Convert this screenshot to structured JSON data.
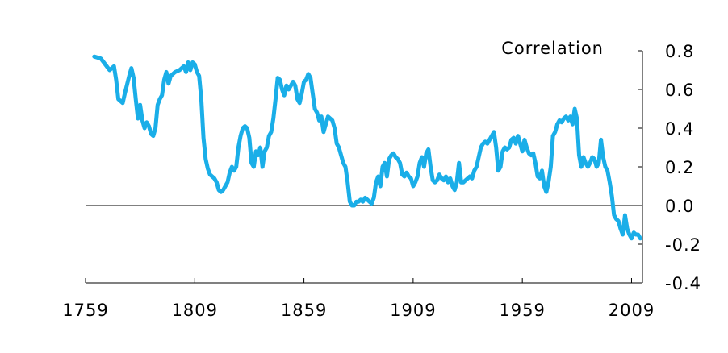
{
  "chart_data": {
    "type": "line",
    "title": "",
    "xlabel": "",
    "ylabel": "Correlation",
    "xlim": [
      1759,
      2014
    ],
    "ylim": [
      -0.4,
      0.8
    ],
    "x_ticks": [
      1759,
      1809,
      1859,
      1909,
      1959,
      2009
    ],
    "x_tick_labels": [
      "1759",
      "1809",
      "1859",
      "1909",
      "1959",
      "2009"
    ],
    "y_ticks": [
      0.8,
      0.6,
      0.4,
      0.2,
      0.0,
      -0.2,
      -0.4
    ],
    "y_tick_labels": [
      "0.8",
      "0.6",
      "0.4",
      "0.2",
      "0.0",
      "-0.2",
      "-0.4"
    ],
    "y_axis_position": "right",
    "zero_line": true,
    "grid": false,
    "legend": "none",
    "series": [
      {
        "color": "#1aaee8",
        "points": [
          [
            1763,
            0.77
          ],
          [
            1766,
            0.76
          ],
          [
            1768,
            0.73
          ],
          [
            1770,
            0.7
          ],
          [
            1772,
            0.72
          ],
          [
            1773,
            0.65
          ],
          [
            1774,
            0.55
          ],
          [
            1776,
            0.53
          ],
          [
            1777,
            0.58
          ],
          [
            1779,
            0.67
          ],
          [
            1780,
            0.71
          ],
          [
            1781,
            0.66
          ],
          [
            1782,
            0.55
          ],
          [
            1783,
            0.45
          ],
          [
            1784,
            0.52
          ],
          [
            1785,
            0.44
          ],
          [
            1786,
            0.4
          ],
          [
            1787,
            0.43
          ],
          [
            1788,
            0.41
          ],
          [
            1789,
            0.37
          ],
          [
            1790,
            0.36
          ],
          [
            1791,
            0.4
          ],
          [
            1792,
            0.52
          ],
          [
            1793,
            0.55
          ],
          [
            1794,
            0.57
          ],
          [
            1795,
            0.65
          ],
          [
            1796,
            0.69
          ],
          [
            1797,
            0.63
          ],
          [
            1798,
            0.67
          ],
          [
            1800,
            0.69
          ],
          [
            1802,
            0.7
          ],
          [
            1804,
            0.72
          ],
          [
            1805,
            0.69
          ],
          [
            1806,
            0.74
          ],
          [
            1807,
            0.7
          ],
          [
            1808,
            0.74
          ],
          [
            1809,
            0.73
          ],
          [
            1810,
            0.69
          ],
          [
            1811,
            0.67
          ],
          [
            1812,
            0.55
          ],
          [
            1813,
            0.35
          ],
          [
            1814,
            0.24
          ],
          [
            1815,
            0.19
          ],
          [
            1816,
            0.16
          ],
          [
            1817,
            0.15
          ],
          [
            1818,
            0.14
          ],
          [
            1819,
            0.12
          ],
          [
            1820,
            0.08
          ],
          [
            1821,
            0.07
          ],
          [
            1822,
            0.08
          ],
          [
            1823,
            0.1
          ],
          [
            1824,
            0.12
          ],
          [
            1825,
            0.17
          ],
          [
            1826,
            0.2
          ],
          [
            1827,
            0.18
          ],
          [
            1828,
            0.2
          ],
          [
            1829,
            0.3
          ],
          [
            1830,
            0.36
          ],
          [
            1831,
            0.4
          ],
          [
            1832,
            0.41
          ],
          [
            1833,
            0.4
          ],
          [
            1834,
            0.35
          ],
          [
            1835,
            0.22
          ],
          [
            1836,
            0.2
          ],
          [
            1837,
            0.28
          ],
          [
            1838,
            0.26
          ],
          [
            1839,
            0.3
          ],
          [
            1840,
            0.2
          ],
          [
            1841,
            0.28
          ],
          [
            1842,
            0.3
          ],
          [
            1843,
            0.36
          ],
          [
            1844,
            0.38
          ],
          [
            1845,
            0.45
          ],
          [
            1846,
            0.55
          ],
          [
            1847,
            0.66
          ],
          [
            1848,
            0.65
          ],
          [
            1849,
            0.6
          ],
          [
            1850,
            0.57
          ],
          [
            1851,
            0.62
          ],
          [
            1852,
            0.6
          ],
          [
            1853,
            0.62
          ],
          [
            1854,
            0.64
          ],
          [
            1855,
            0.62
          ],
          [
            1856,
            0.55
          ],
          [
            1857,
            0.53
          ],
          [
            1858,
            0.58
          ],
          [
            1859,
            0.64
          ],
          [
            1860,
            0.65
          ],
          [
            1861,
            0.68
          ],
          [
            1862,
            0.66
          ],
          [
            1863,
            0.58
          ],
          [
            1864,
            0.5
          ],
          [
            1865,
            0.48
          ],
          [
            1866,
            0.44
          ],
          [
            1867,
            0.46
          ],
          [
            1868,
            0.38
          ],
          [
            1869,
            0.42
          ],
          [
            1870,
            0.46
          ],
          [
            1871,
            0.45
          ],
          [
            1872,
            0.44
          ],
          [
            1873,
            0.4
          ],
          [
            1874,
            0.32
          ],
          [
            1875,
            0.3
          ],
          [
            1876,
            0.26
          ],
          [
            1877,
            0.22
          ],
          [
            1878,
            0.2
          ],
          [
            1879,
            0.12
          ],
          [
            1880,
            0.02
          ],
          [
            1881,
            0.0
          ],
          [
            1882,
            0.0
          ],
          [
            1883,
            0.02
          ],
          [
            1884,
            0.02
          ],
          [
            1885,
            0.03
          ],
          [
            1886,
            0.02
          ],
          [
            1887,
            0.04
          ],
          [
            1888,
            0.03
          ],
          [
            1889,
            0.02
          ],
          [
            1890,
            0.01
          ],
          [
            1891,
            0.04
          ],
          [
            1892,
            0.12
          ],
          [
            1893,
            0.15
          ],
          [
            1894,
            0.1
          ],
          [
            1895,
            0.2
          ],
          [
            1896,
            0.22
          ],
          [
            1897,
            0.15
          ],
          [
            1898,
            0.24
          ],
          [
            1899,
            0.26
          ],
          [
            1900,
            0.27
          ],
          [
            1901,
            0.25
          ],
          [
            1902,
            0.24
          ],
          [
            1903,
            0.22
          ],
          [
            1904,
            0.16
          ],
          [
            1905,
            0.15
          ],
          [
            1906,
            0.17
          ],
          [
            1907,
            0.15
          ],
          [
            1908,
            0.14
          ],
          [
            1909,
            0.1
          ],
          [
            1910,
            0.12
          ],
          [
            1911,
            0.15
          ],
          [
            1912,
            0.22
          ],
          [
            1913,
            0.25
          ],
          [
            1914,
            0.2
          ],
          [
            1915,
            0.27
          ],
          [
            1916,
            0.29
          ],
          [
            1917,
            0.2
          ],
          [
            1918,
            0.13
          ],
          [
            1919,
            0.12
          ],
          [
            1920,
            0.13
          ],
          [
            1921,
            0.16
          ],
          [
            1922,
            0.14
          ],
          [
            1923,
            0.13
          ],
          [
            1924,
            0.15
          ],
          [
            1925,
            0.12
          ],
          [
            1926,
            0.14
          ],
          [
            1927,
            0.1
          ],
          [
            1928,
            0.08
          ],
          [
            1929,
            0.12
          ],
          [
            1930,
            0.22
          ],
          [
            1931,
            0.12
          ],
          [
            1932,
            0.12
          ],
          [
            1933,
            0.13
          ],
          [
            1934,
            0.14
          ],
          [
            1935,
            0.15
          ],
          [
            1936,
            0.14
          ],
          [
            1937,
            0.18
          ],
          [
            1938,
            0.2
          ],
          [
            1939,
            0.25
          ],
          [
            1940,
            0.3
          ],
          [
            1941,
            0.32
          ],
          [
            1942,
            0.33
          ],
          [
            1943,
            0.32
          ],
          [
            1944,
            0.34
          ],
          [
            1945,
            0.36
          ],
          [
            1946,
            0.38
          ],
          [
            1947,
            0.3
          ],
          [
            1948,
            0.18
          ],
          [
            1949,
            0.2
          ],
          [
            1950,
            0.28
          ],
          [
            1951,
            0.3
          ],
          [
            1952,
            0.29
          ],
          [
            1953,
            0.3
          ],
          [
            1954,
            0.34
          ],
          [
            1955,
            0.35
          ],
          [
            1956,
            0.32
          ],
          [
            1957,
            0.36
          ],
          [
            1958,
            0.32
          ],
          [
            1959,
            0.28
          ],
          [
            1960,
            0.34
          ],
          [
            1961,
            0.3
          ],
          [
            1962,
            0.27
          ],
          [
            1963,
            0.26
          ],
          [
            1964,
            0.27
          ],
          [
            1965,
            0.22
          ],
          [
            1966,
            0.15
          ],
          [
            1967,
            0.14
          ],
          [
            1968,
            0.18
          ],
          [
            1969,
            0.1
          ],
          [
            1970,
            0.07
          ],
          [
            1971,
            0.12
          ],
          [
            1972,
            0.2
          ],
          [
            1973,
            0.36
          ],
          [
            1974,
            0.38
          ],
          [
            1975,
            0.42
          ],
          [
            1976,
            0.44
          ],
          [
            1977,
            0.43
          ],
          [
            1978,
            0.45
          ],
          [
            1979,
            0.46
          ],
          [
            1980,
            0.44
          ],
          [
            1981,
            0.46
          ],
          [
            1982,
            0.42
          ],
          [
            1983,
            0.5
          ],
          [
            1984,
            0.45
          ],
          [
            1985,
            0.26
          ],
          [
            1986,
            0.2
          ],
          [
            1987,
            0.25
          ],
          [
            1988,
            0.22
          ],
          [
            1989,
            0.2
          ],
          [
            1990,
            0.22
          ],
          [
            1991,
            0.25
          ],
          [
            1992,
            0.24
          ],
          [
            1993,
            0.2
          ],
          [
            1994,
            0.22
          ],
          [
            1995,
            0.34
          ],
          [
            1996,
            0.25
          ],
          [
            1997,
            0.2
          ],
          [
            1998,
            0.18
          ],
          [
            1999,
            0.12
          ],
          [
            2000,
            0.05
          ],
          [
            2001,
            -0.05
          ],
          [
            2002,
            -0.07
          ],
          [
            2003,
            -0.08
          ],
          [
            2004,
            -0.12
          ],
          [
            2005,
            -0.15
          ],
          [
            2006,
            -0.05
          ],
          [
            2007,
            -0.12
          ],
          [
            2008,
            -0.15
          ],
          [
            2009,
            -0.17
          ],
          [
            2010,
            -0.14
          ],
          [
            2011,
            -0.15
          ],
          [
            2012,
            -0.15
          ],
          [
            2013,
            -0.17
          ]
        ]
      }
    ]
  }
}
